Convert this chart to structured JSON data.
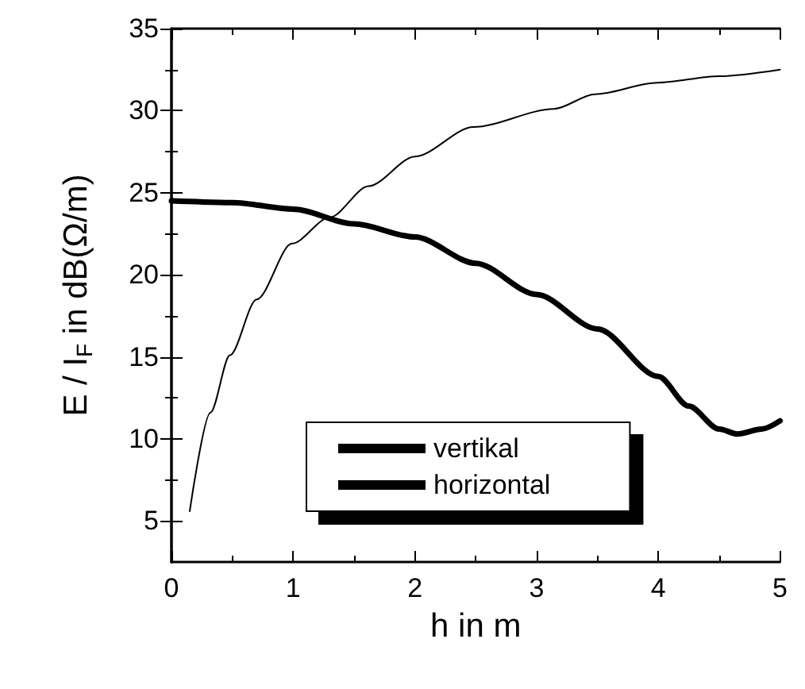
{
  "chart_data": {
    "type": "line",
    "xlabel": "h in m",
    "ylabel": "E / I$_{F}$ in dB(Ω/m)",
    "xlim": [
      0,
      5
    ],
    "ylim": [
      2.5,
      35
    ],
    "xticks": [
      0,
      1,
      2,
      3,
      4,
      5
    ],
    "yticks": [
      5,
      10,
      15,
      20,
      25,
      30,
      35
    ],
    "grid": false,
    "legend": "bottom",
    "marker": "none",
    "line_style": "solid",
    "series": [
      {
        "name": "vertikal",
        "color": "#000000",
        "x": [
          0,
          0.5,
          1,
          1.5,
          2,
          2.5,
          3,
          3.5,
          4,
          4.25,
          4.5,
          4.65,
          4.85,
          5
        ],
        "values": [
          24.5,
          24.4,
          24.0,
          23.1,
          22.3,
          20.7,
          18.8,
          16.7,
          13.8,
          12.0,
          10.6,
          10.3,
          10.6,
          11.1
        ]
      },
      {
        "name": "horizontal",
        "color": "#000000",
        "x": [
          0.15,
          0.32,
          0.48,
          0.7,
          0.99,
          1.3,
          1.62,
          2,
          2.48,
          3.14,
          3.48,
          3.99,
          4.5,
          5
        ],
        "values": [
          5.6,
          11.6,
          15.1,
          18.5,
          21.9,
          23.5,
          25.4,
          27.2,
          29.0,
          30.1,
          31.0,
          31.7,
          32.1,
          32.5
        ]
      }
    ]
  }
}
